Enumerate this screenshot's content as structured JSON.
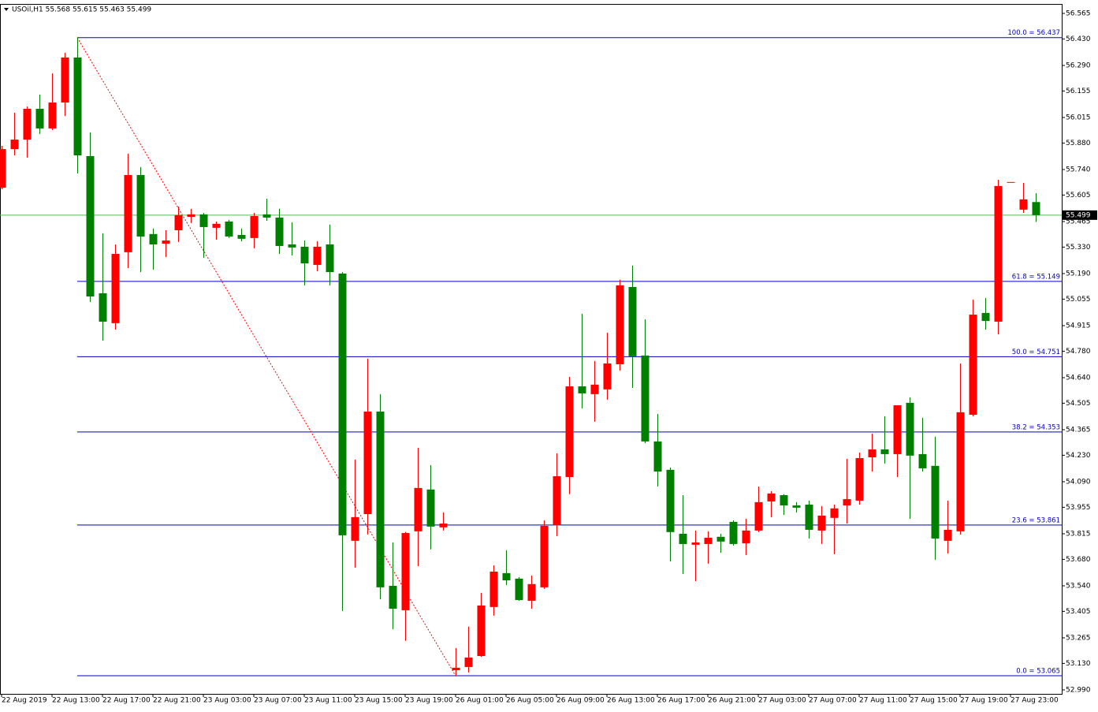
{
  "chart_data": {
    "type": "candlestick",
    "title": "USOil,H1  55.568 55.615 55.463 55.499",
    "categories": [
      "22 Aug 2019",
      null,
      null,
      null,
      "22 Aug 13:00",
      null,
      null,
      null,
      "22 Aug 17:00",
      null,
      null,
      null,
      "22 Aug 21:00",
      null,
      null,
      null,
      "23 Aug 03:00",
      null,
      null,
      null,
      "23 Aug 07:00",
      null,
      null,
      null,
      "23 Aug 11:00",
      null,
      null,
      null,
      "23 Aug 15:00",
      null,
      null,
      null,
      "23 Aug 19:00",
      null,
      null,
      null,
      "26 Aug 01:00",
      null,
      null,
      null,
      "26 Aug 05:00",
      null,
      null,
      null,
      "26 Aug 09:00",
      null,
      null,
      null,
      "26 Aug 13:00",
      null,
      null,
      null,
      "26 Aug 17:00",
      null,
      null,
      null,
      "26 Aug 21:00",
      null,
      null,
      null,
      "27 Aug 03:00",
      null,
      null,
      null,
      "27 Aug 07:00",
      null,
      null,
      null,
      "27 Aug 11:00",
      null,
      null,
      null,
      "27 Aug 15:00",
      null,
      null,
      null,
      "27 Aug 19:00",
      null,
      null,
      null,
      "27 Aug 23:00",
      null,
      null
    ],
    "open": [
      55.644,
      55.848,
      55.898,
      56.061,
      55.957,
      56.094,
      56.332,
      55.811,
      55.086,
      54.928,
      55.303,
      55.711,
      55.399,
      55.348,
      55.419,
      55.49,
      55.503,
      55.432,
      55.465,
      55.394,
      55.378,
      55.503,
      55.486,
      55.344,
      55.332,
      55.236,
      55.344,
      55.19,
      53.778,
      53.919,
      54.461,
      53.54,
      53.411,
      53.828,
      54.049,
      53.849,
      53.094,
      53.111,
      53.169,
      53.428,
      53.607,
      53.578,
      53.461,
      53.532,
      53.861,
      54.115,
      54.594,
      54.553,
      54.578,
      54.711,
      55.119,
      54.757,
      54.303,
      54.153,
      53.815,
      53.757,
      53.761,
      53.799,
      53.878,
      53.765,
      53.832,
      53.986,
      54.019,
      53.965,
      53.969,
      53.832,
      53.899,
      53.965,
      53.99,
      54.219,
      54.261,
      54.236,
      54.507,
      54.236,
      54.174,
      53.778,
      53.828,
      54.444,
      54.982,
      54.936,
      55.674,
      55.528,
      55.568
    ],
    "high": [
      55.865,
      56.04,
      56.073,
      56.136,
      56.248,
      56.357,
      56.437,
      55.936,
      55.403,
      55.344,
      55.824,
      55.753,
      55.428,
      55.419,
      55.544,
      55.532,
      55.511,
      55.465,
      55.474,
      55.428,
      55.511,
      55.586,
      55.532,
      55.461,
      55.365,
      55.361,
      55.449,
      55.198,
      54.207,
      54.74,
      54.553,
      53.769,
      53.824,
      54.269,
      54.178,
      53.928,
      53.211,
      53.324,
      53.503,
      53.648,
      53.728,
      53.586,
      53.594,
      53.886,
      54.24,
      54.644,
      54.978,
      54.728,
      54.878,
      55.157,
      55.232,
      54.948,
      54.448,
      54.165,
      54.019,
      53.832,
      53.828,
      53.815,
      53.886,
      53.894,
      54.065,
      54.04,
      54.024,
      53.982,
      53.99,
      53.961,
      53.969,
      54.211,
      54.244,
      54.344,
      54.436,
      54.494,
      54.536,
      54.428,
      54.328,
      53.99,
      54.715,
      55.053,
      55.061,
      55.686,
      55.674,
      55.669,
      55.615
    ],
    "low": [
      55.636,
      55.815,
      55.803,
      55.928,
      55.949,
      56.023,
      55.719,
      55.04,
      54.836,
      54.894,
      55.219,
      55.198,
      55.211,
      55.278,
      55.357,
      55.457,
      55.274,
      55.369,
      55.378,
      55.361,
      55.324,
      55.469,
      55.294,
      55.286,
      55.128,
      55.203,
      55.128,
      53.407,
      53.636,
      53.811,
      53.469,
      53.311,
      53.249,
      53.644,
      53.732,
      53.832,
      53.065,
      53.082,
      53.165,
      53.382,
      53.544,
      53.461,
      53.419,
      53.524,
      53.803,
      54.024,
      54.478,
      54.407,
      54.524,
      54.678,
      54.586,
      54.294,
      54.065,
      53.669,
      53.603,
      53.565,
      53.657,
      53.715,
      53.753,
      53.703,
      53.824,
      53.903,
      53.915,
      53.928,
      53.79,
      53.761,
      53.707,
      53.869,
      53.969,
      54.144,
      54.186,
      54.115,
      53.894,
      54.144,
      53.678,
      53.711,
      53.811,
      54.436,
      54.894,
      54.869,
      55.674,
      55.511,
      55.463
    ],
    "close": [
      55.848,
      55.898,
      56.061,
      55.957,
      56.094,
      56.332,
      55.815,
      55.069,
      54.936,
      55.294,
      55.711,
      55.386,
      55.344,
      55.365,
      55.499,
      55.503,
      55.436,
      55.453,
      55.386,
      55.374,
      55.494,
      55.486,
      55.336,
      55.328,
      55.244,
      55.332,
      55.198,
      53.807,
      53.903,
      54.461,
      53.532,
      53.419,
      53.819,
      54.057,
      53.853,
      53.869,
      53.107,
      53.161,
      53.436,
      53.615,
      53.569,
      53.465,
      53.549,
      53.857,
      54.119,
      54.594,
      54.557,
      54.603,
      54.715,
      55.128,
      54.753,
      54.303,
      54.144,
      53.824,
      53.761,
      53.769,
      53.794,
      53.774,
      53.761,
      53.832,
      53.982,
      54.028,
      53.965,
      53.953,
      53.836,
      53.911,
      53.949,
      53.998,
      54.215,
      54.261,
      54.236,
      54.494,
      54.228,
      54.161,
      53.79,
      53.836,
      54.457,
      54.973,
      54.94,
      55.653,
      55.674,
      55.582,
      55.499
    ],
    "up_color": "#ff0000",
    "down_color": "#008000",
    "ylim": [
      52.969,
      56.615
    ],
    "yticks": [
      56.565,
      {
        "value": 56.43,
        "label": "56.430"
      },
      {
        "value": 56.29,
        "label": "56.290"
      },
      56.155,
      56.015,
      {
        "value": 55.88,
        "label": "55.880"
      },
      {
        "value": 55.74,
        "label": "55.740"
      },
      55.605,
      55.465,
      {
        "value": 55.33,
        "label": "55.330"
      },
      {
        "value": 55.19,
        "label": "55.190"
      },
      55.055,
      54.915,
      {
        "value": 54.78,
        "label": "54.780"
      },
      {
        "value": 54.64,
        "label": "54.640"
      },
      54.505,
      54.365,
      {
        "value": 54.23,
        "label": "54.230"
      },
      {
        "value": 54.09,
        "label": "54.090"
      },
      53.955,
      53.815,
      {
        "value": 53.68,
        "label": "53.680"
      },
      {
        "value": 53.54,
        "label": "53.540"
      },
      53.405,
      53.265,
      {
        "value": 53.13,
        "label": "53.130"
      },
      {
        "value": 52.99,
        "label": "52.990"
      }
    ],
    "fib_levels": [
      {
        "value": 56.437,
        "label": "100.0 = 56.437"
      },
      {
        "value": 55.149,
        "label": "61.8 = 55.149"
      },
      {
        "value": 54.751,
        "label": "50.0 = 54.751"
      },
      {
        "value": 54.353,
        "label": "38.2 = 54.353"
      },
      {
        "value": 53.861,
        "label": "23.6 = 53.861"
      },
      {
        "value": 53.065,
        "label": "0.0 = 53.065"
      }
    ],
    "fib_color": "#0000c8",
    "trendline_color": "#ff0000",
    "last_price": 55.499,
    "last_price_color": "#55bb55"
  }
}
